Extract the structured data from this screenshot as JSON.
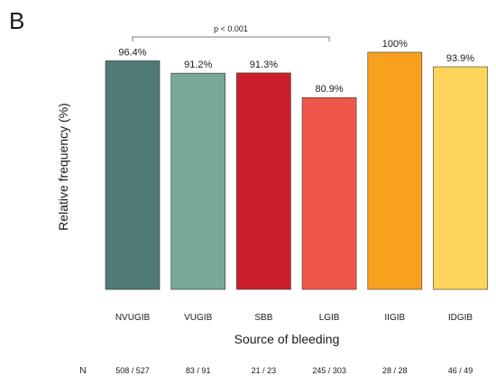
{
  "panel_letter": "B",
  "chart_data": {
    "type": "bar",
    "categories": [
      "NVUGIB",
      "VUGIB",
      "SBB",
      "LGIB",
      "IIGIB",
      "IDGIB"
    ],
    "values": [
      96.4,
      91.2,
      91.3,
      80.9,
      100,
      93.9
    ],
    "value_labels": [
      "96.4%",
      "91.2%",
      "91.3%",
      "80.9%",
      "100%",
      "93.9%"
    ],
    "colors": [
      "#507a74",
      "#7aa896",
      "#cc1f2c",
      "#f0574b",
      "#f8a11e",
      "#fed45a"
    ],
    "xlabel": "Source of bleeding",
    "ylabel": "Relative frequency (%)",
    "ylim": [
      0,
      100
    ],
    "grid": false,
    "annotation": {
      "text": "p < 0.001",
      "from_category": "NVUGIB",
      "to_category": "LGIB"
    },
    "counts_label": "N",
    "counts": [
      "508 / 527",
      "83 / 91",
      "21 / 23",
      "245 / 303",
      "28 / 28",
      "46 / 49"
    ]
  }
}
